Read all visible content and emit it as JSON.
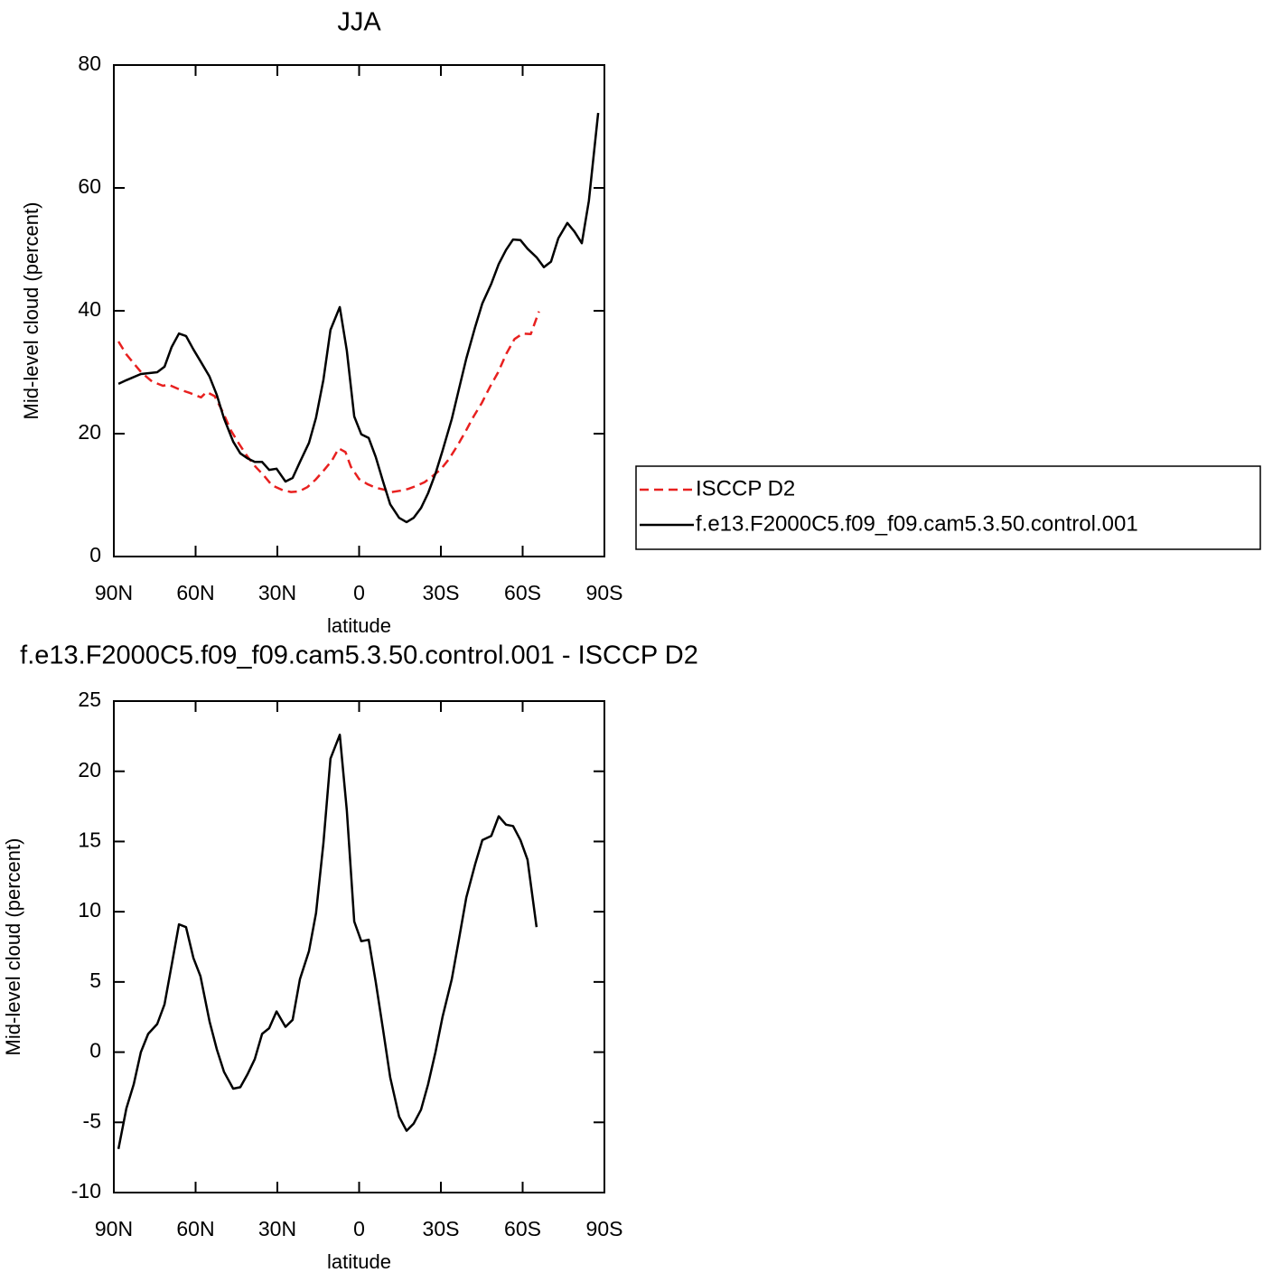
{
  "chart_data": [
    {
      "type": "line",
      "title": "JJA",
      "xlabel": "latitude",
      "ylabel": "Mid-level cloud (percent)",
      "xlim": [
        90,
        -90
      ],
      "ylim": [
        0,
        80
      ],
      "xticks": [
        {
          "value": 90,
          "label": "90N"
        },
        {
          "value": 60,
          "label": "60N"
        },
        {
          "value": 30,
          "label": "30N"
        },
        0,
        {
          "value": -30,
          "label": "30S"
        },
        {
          "value": -60,
          "label": "60S"
        },
        {
          "value": -90,
          "label": "90S"
        }
      ],
      "yticks": [
        0,
        20,
        40,
        60,
        80
      ],
      "legend": "right",
      "series": [
        {
          "name": "ISCCP D2",
          "color": "#e8201f",
          "dash": true,
          "x": [
            88.3,
            85.4,
            80,
            76,
            72,
            70,
            66,
            62,
            58,
            56,
            53,
            50,
            47,
            44,
            41,
            38,
            35,
            32,
            28,
            25,
            22,
            19,
            16,
            13,
            10,
            7.5,
            5,
            3,
            0,
            -3,
            -6,
            -9,
            -12,
            -15,
            -18,
            -21,
            -24,
            -27,
            -30,
            -33,
            -36,
            -39,
            -42,
            -45,
            -48,
            -51,
            -54,
            -57,
            -60,
            -63,
            -66
          ],
          "values": [
            35.0,
            32.9,
            30.0,
            28.5,
            27.8,
            28.0,
            27.2,
            26.6,
            25.9,
            26.8,
            26.1,
            23.5,
            20.5,
            18.3,
            16.3,
            14.6,
            13.2,
            11.6,
            10.8,
            10.5,
            10.6,
            11.3,
            12.5,
            14.0,
            15.6,
            17.6,
            17.0,
            14.6,
            12.6,
            11.8,
            11.2,
            10.9,
            10.5,
            10.7,
            11.0,
            11.5,
            12.1,
            13.1,
            14.2,
            15.9,
            18.0,
            20.3,
            22.8,
            25.0,
            27.6,
            30.0,
            33.0,
            35.4,
            36.3,
            36.2,
            39.9
          ]
        },
        {
          "name": "f.e13.F2000C5.f09_f09.cam5.3.50.control.001",
          "color": "#000000",
          "dash": false,
          "x": [
            88.3,
            85.4,
            80.1,
            74.1,
            71.4,
            68.8,
            66.1,
            63.5,
            60.8,
            58.2,
            54.9,
            52.2,
            49.6,
            46.2,
            43.6,
            41.0,
            38.3,
            35.6,
            33.0,
            30.3,
            27.0,
            24.4,
            21.7,
            18.4,
            15.8,
            13.1,
            10.5,
            7.1,
            4.5,
            1.8,
            -0.8,
            -3.5,
            -6.1,
            -8.8,
            -11.4,
            -14.7,
            -17.4,
            -20.0,
            -22.7,
            -25.3,
            -28.0,
            -30.6,
            -34.0,
            -36.6,
            -39.3,
            -42.6,
            -45.2,
            -48.5,
            -51.2,
            -53.9,
            -56.5,
            -59.2,
            -61.8,
            -65.1,
            -67.8,
            -70.4,
            -73.1,
            -76.4,
            -79.0,
            -81.7,
            -84.3,
            -87.7
          ],
          "values": [
            28.1,
            28.7,
            29.7,
            30.0,
            30.9,
            34.1,
            36.3,
            35.9,
            33.7,
            31.8,
            29.3,
            26.3,
            22.5,
            18.7,
            16.8,
            16.0,
            15.4,
            15.4,
            14.1,
            14.3,
            12.2,
            12.8,
            15.4,
            18.5,
            22.6,
            28.8,
            36.9,
            40.6,
            33.5,
            22.8,
            19.9,
            19.3,
            16.2,
            12.2,
            8.5,
            6.3,
            5.6,
            6.3,
            7.9,
            10.3,
            13.5,
            17.2,
            22.4,
            27.2,
            32.2,
            37.4,
            41.2,
            44.4,
            47.6,
            49.9,
            51.6,
            51.5,
            50.1,
            48.7,
            47.1,
            48.0,
            51.8,
            54.3,
            52.9,
            51.0,
            57.9,
            72.2
          ]
        }
      ]
    },
    {
      "type": "line",
      "title": "f.e13.F2000C5.f09_f09.cam5.3.50.control.001 - ISCCP D2",
      "xlabel": "latitude",
      "ylabel": "Mid-level cloud (percent)",
      "xlim": [
        90,
        -90
      ],
      "ylim": [
        -10,
        25
      ],
      "xticks": [
        {
          "value": 90,
          "label": "90N"
        },
        {
          "value": 60,
          "label": "60N"
        },
        {
          "value": 30,
          "label": "30N"
        },
        0,
        {
          "value": -30,
          "label": "30S"
        },
        {
          "value": -60,
          "label": "60S"
        },
        {
          "value": -90,
          "label": "90S"
        }
      ],
      "yticks": [
        -10,
        -5,
        0,
        5,
        10,
        15,
        20,
        25
      ],
      "series": [
        {
          "color": "#000000",
          "dash": false,
          "x": [
            88.3,
            85.4,
            82.7,
            80.1,
            77.4,
            74.1,
            71.4,
            68.8,
            66.1,
            63.5,
            60.8,
            58.2,
            54.9,
            52.2,
            49.6,
            46.2,
            43.6,
            41.0,
            38.3,
            35.6,
            33.0,
            30.3,
            27.0,
            24.4,
            21.7,
            18.4,
            15.8,
            13.1,
            10.5,
            7.1,
            4.5,
            1.8,
            -0.8,
            -3.5,
            -6.1,
            -8.8,
            -11.4,
            -14.7,
            -17.4,
            -20.0,
            -22.7,
            -25.3,
            -28.0,
            -30.6,
            -34.0,
            -36.6,
            -39.3,
            -42.6,
            -45.2,
            -48.5,
            -51.2,
            -53.9,
            -56.5,
            -59.2,
            -61.8,
            -65.1
          ],
          "values": [
            -6.9,
            -4.0,
            -2.3,
            0,
            1.3,
            2.0,
            3.4,
            6.2,
            9.1,
            8.9,
            6.7,
            5.4,
            2.2,
            0.2,
            -1.4,
            -2.6,
            -2.5,
            -1.6,
            -0.5,
            1.3,
            1.7,
            2.9,
            1.8,
            2.3,
            5.2,
            7.2,
            9.9,
            14.9,
            20.9,
            22.6,
            17.2,
            9.3,
            7.9,
            8.0,
            5.0,
            1.6,
            -1.8,
            -4.6,
            -5.6,
            -5.1,
            -4.1,
            -2.3,
            0,
            2.5,
            5.2,
            8.0,
            11.0,
            13.4,
            15.1,
            15.4,
            16.8,
            16.2,
            16.1,
            15.1,
            13.7,
            8.9
          ]
        }
      ]
    }
  ]
}
